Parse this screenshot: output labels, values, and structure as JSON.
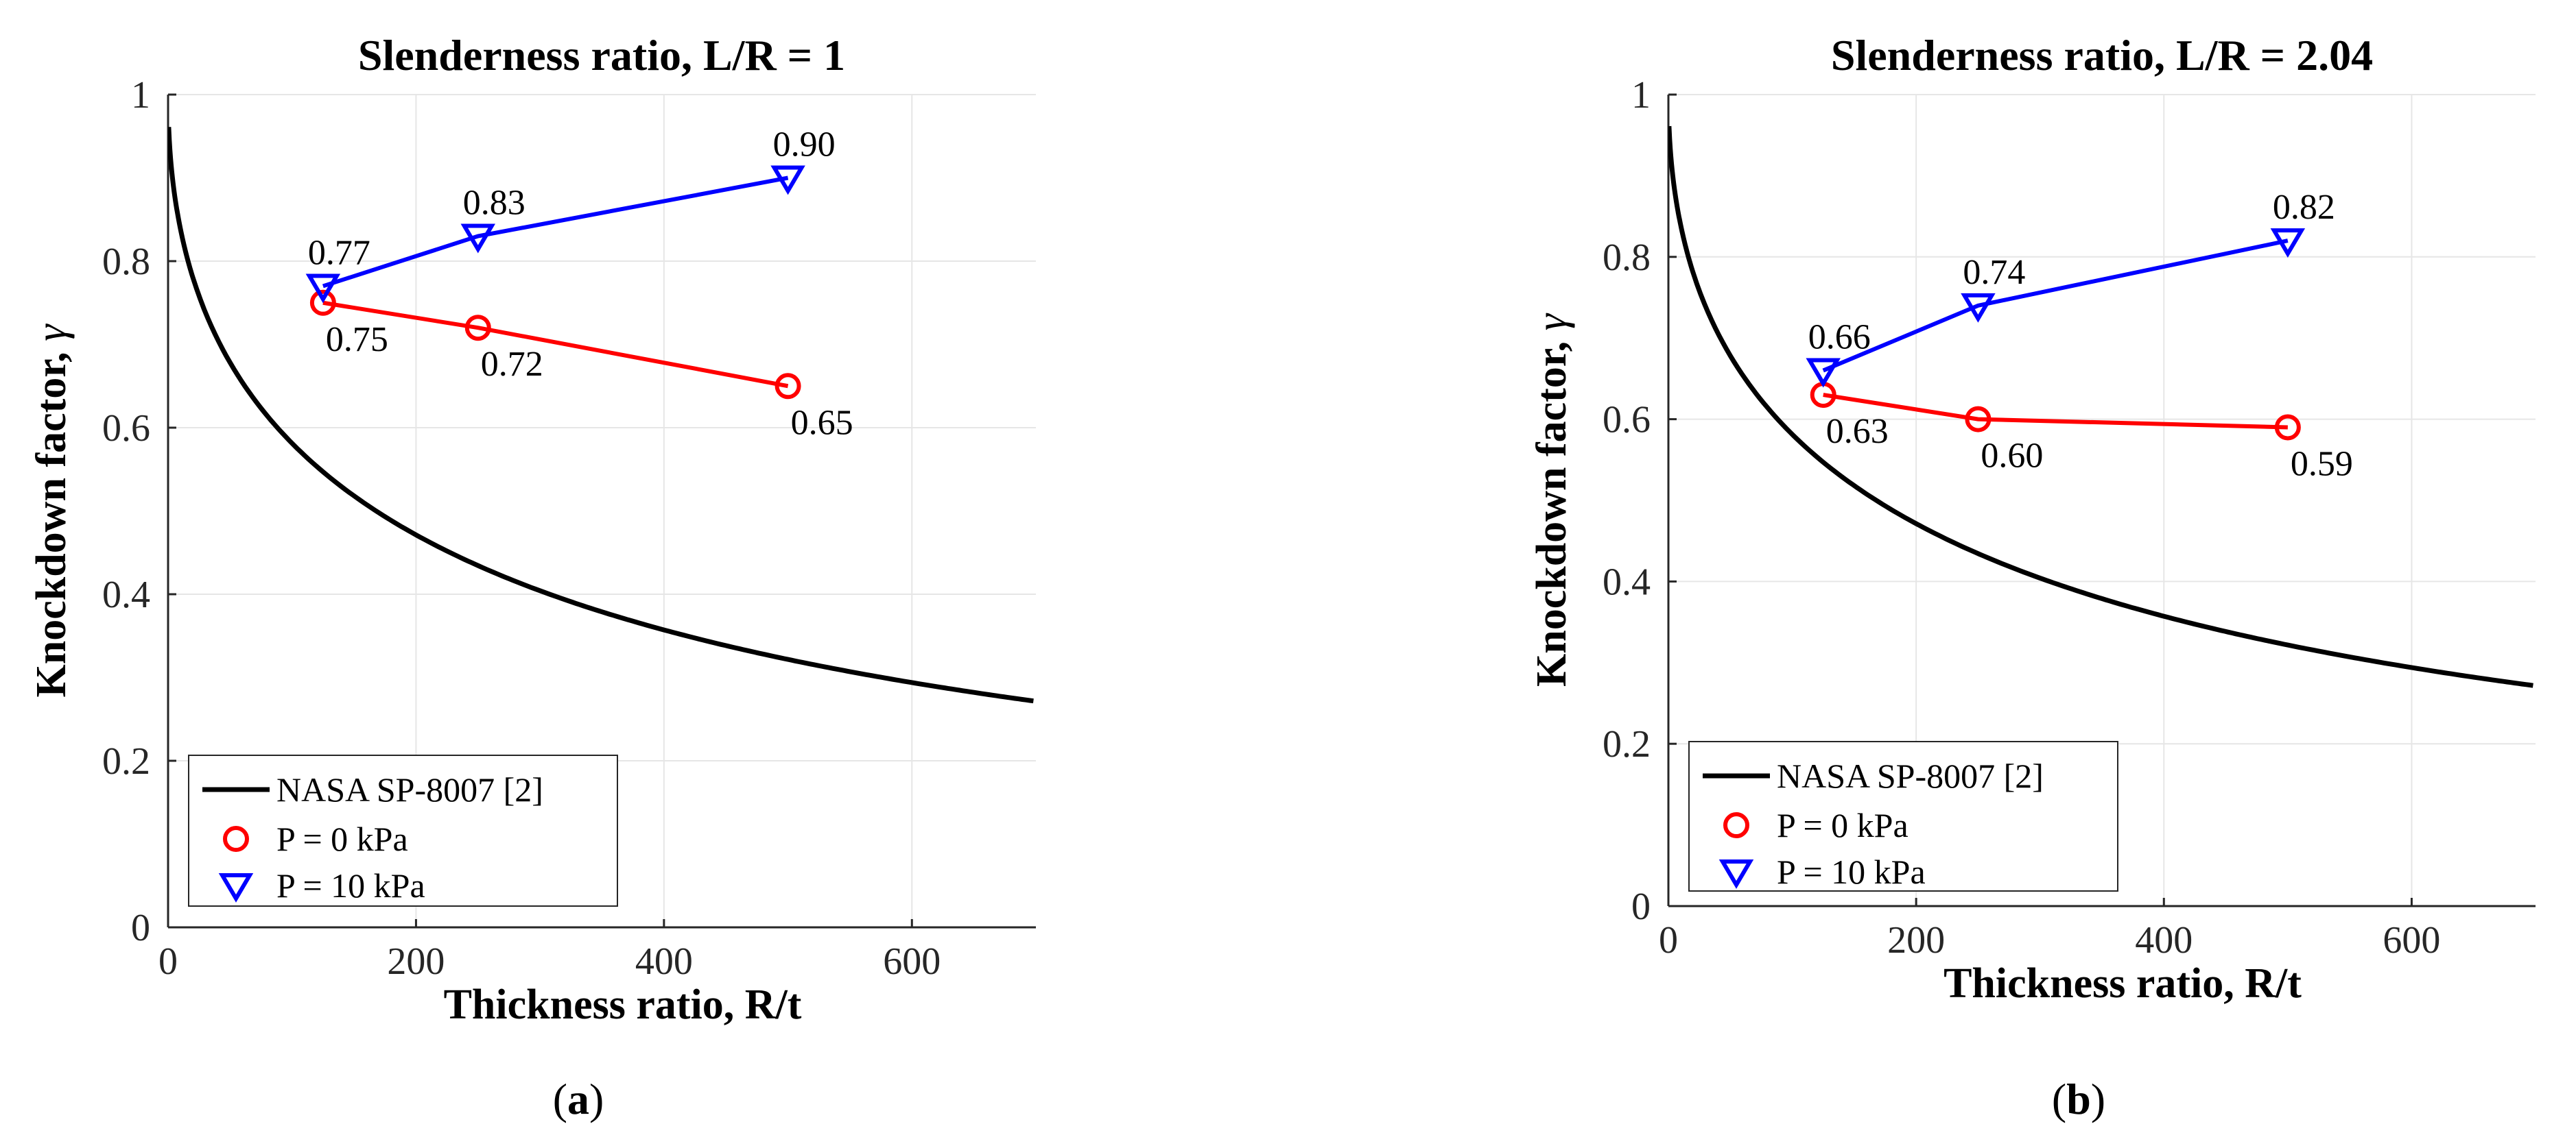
{
  "colors": {
    "nasa": "#000000",
    "p0": "#ff0000",
    "p10": "#0000ff",
    "grid": "#e6e6e6",
    "axis": "#262626"
  },
  "chart_data": [
    {
      "type": "line",
      "title": "Slenderness ratio, L/R = 1",
      "xlabel": "Thickness ratio, R/t",
      "ylabel_main": "Knockdown factor, ",
      "ylabel_sym": "γ",
      "xlim": [
        0,
        700
      ],
      "ylim": [
        0,
        1
      ],
      "xticks": [
        0,
        200,
        400,
        600
      ],
      "yticks": [
        0,
        0.2,
        0.4,
        0.6,
        0.8,
        1
      ],
      "xtick_labels": [
        "0",
        "200",
        "400",
        "600"
      ],
      "ytick_labels": [
        "0",
        "0.2",
        "0.4",
        "0.6",
        "0.8",
        "1"
      ],
      "legend_position": "bottom-left",
      "caption_open": "(",
      "caption_letter": "a",
      "caption_close": ")",
      "series": [
        {
          "name": "NASA SP-8007 [2]",
          "kind": "curve",
          "formula": "1 - 0.901*(1 - exp(-sqrt(x)/16))"
        },
        {
          "name": "P = 0 kPa",
          "kind": "markers-circle",
          "x": [
            125,
            250,
            500
          ],
          "y": [
            0.75,
            0.72,
            0.65
          ],
          "labels": [
            "0.75",
            "0.72",
            "0.65"
          ]
        },
        {
          "name": "P = 10 kPa",
          "kind": "markers-triangle",
          "x": [
            125,
            250,
            500
          ],
          "y": [
            0.77,
            0.83,
            0.9
          ],
          "labels": [
            "0.77",
            "0.83",
            "0.90"
          ]
        }
      ]
    },
    {
      "type": "line",
      "title": "Slenderness ratio, L/R = 2.04",
      "xlabel": "Thickness ratio, R/t",
      "ylabel_main": "Knockdown factor, ",
      "ylabel_sym": "γ",
      "xlim": [
        0,
        700
      ],
      "ylim": [
        0,
        1
      ],
      "xticks": [
        0,
        200,
        400,
        600
      ],
      "yticks": [
        0,
        0.2,
        0.4,
        0.6,
        0.8,
        1
      ],
      "xtick_labels": [
        "0",
        "200",
        "400",
        "600"
      ],
      "ytick_labels": [
        "0",
        "0.2",
        "0.4",
        "0.6",
        "0.8",
        "1"
      ],
      "legend_position": "bottom-left",
      "caption_open": "(",
      "caption_letter": "b",
      "caption_close": ")",
      "series": [
        {
          "name": "NASA SP-8007 [2]",
          "kind": "curve",
          "formula": "1 - 0.901*(1 - exp(-sqrt(x)/16))"
        },
        {
          "name": "P = 0 kPa",
          "kind": "markers-circle",
          "x": [
            125,
            250,
            500
          ],
          "y": [
            0.63,
            0.6,
            0.59
          ],
          "labels": [
            "0.63",
            "0.60",
            "0.59"
          ]
        },
        {
          "name": "P = 10 kPa",
          "kind": "markers-triangle",
          "x": [
            125,
            250,
            500
          ],
          "y": [
            0.66,
            0.74,
            0.82
          ],
          "labels": [
            "0.66",
            "0.74",
            "0.82"
          ]
        }
      ]
    }
  ]
}
